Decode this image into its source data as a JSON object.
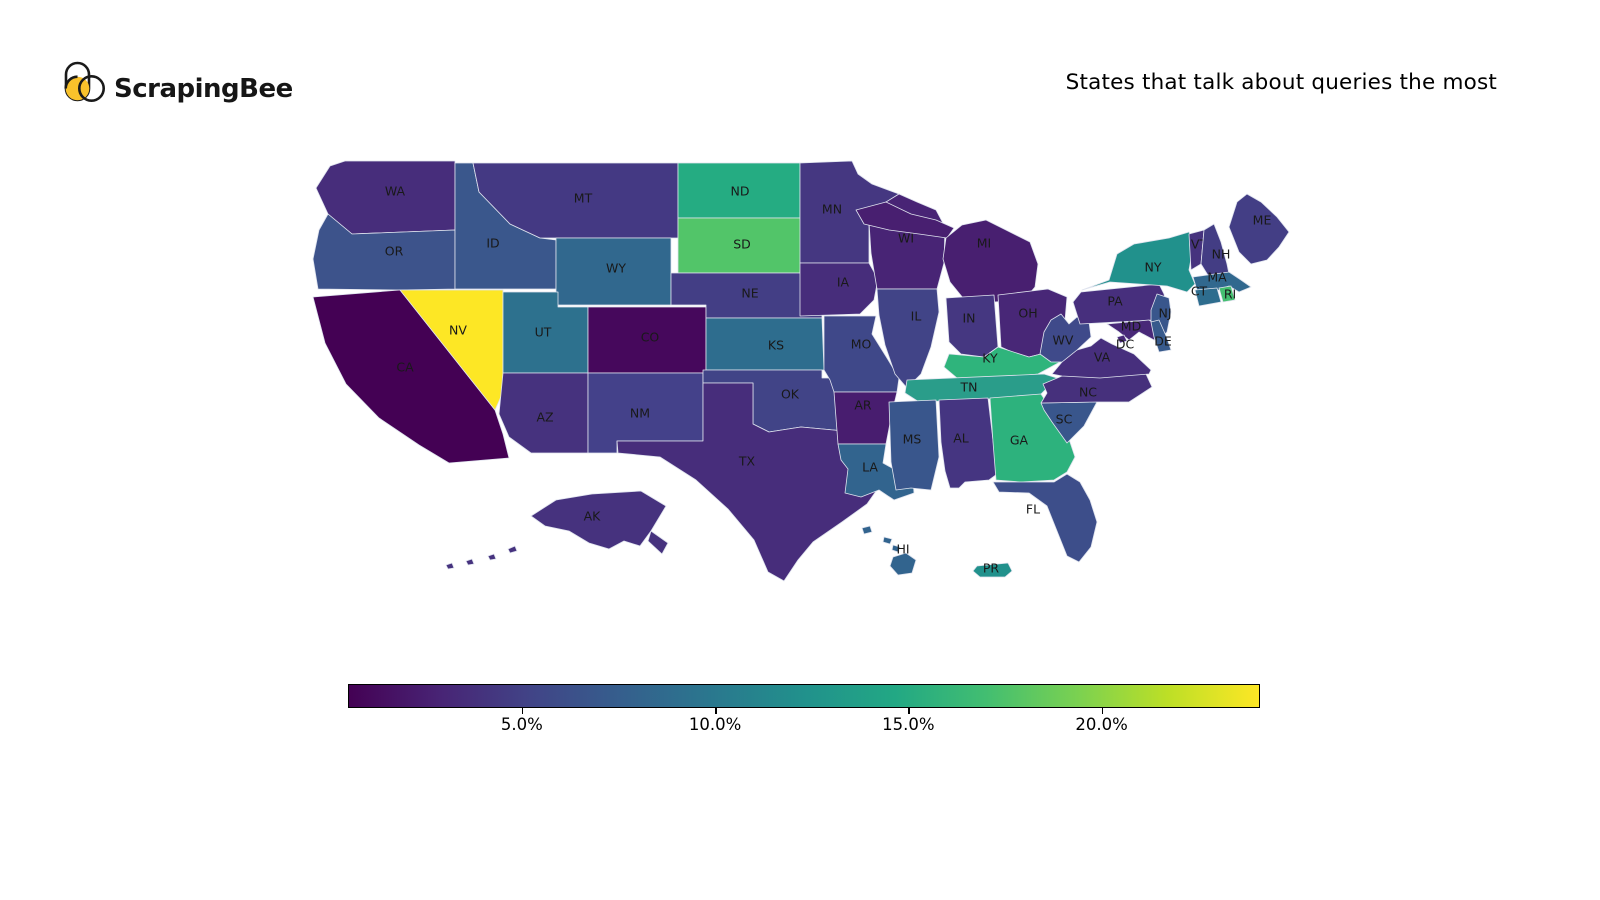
{
  "header": {
    "logo_text": "ScrapingBee",
    "title": "States that talk about queries the most"
  },
  "colors": {
    "background": "#ffffff",
    "state_border": "#dfe3ee",
    "state_label": "#191919",
    "title_text": "#000000",
    "logo_yellow": "#F9C22B",
    "logo_dark": "#1a1a1a",
    "colorbar_border": "#000000"
  },
  "chart_data": {
    "type": "choropleth",
    "region": "usa-states",
    "title": "States that talk about queries the most",
    "colormap": "viridis",
    "unit": "%",
    "colorbar": {
      "orientation": "horizontal",
      "min": 0.5,
      "max": 24.1,
      "tick_values": [
        5,
        10,
        15,
        20
      ],
      "tick_labels": [
        "5.0%",
        "10.0%",
        "15.0%",
        "20.0%"
      ]
    },
    "states": [
      {
        "code": "WA",
        "value_pct_approx": 3.2,
        "color": "#472D7B"
      },
      {
        "code": "OR",
        "value_pct_approx": 6.8,
        "color": "#3D538B"
      },
      {
        "code": "CA",
        "value_pct_approx": 0.6,
        "color": "#440154"
      },
      {
        "code": "NV",
        "value_pct_approx": 24.1,
        "color": "#FDE725"
      },
      {
        "code": "ID",
        "value_pct_approx": 7.2,
        "color": "#3A578C"
      },
      {
        "code": "MT",
        "value_pct_approx": 4.2,
        "color": "#443983"
      },
      {
        "code": "WY",
        "value_pct_approx": 9.1,
        "color": "#31688E"
      },
      {
        "code": "UT",
        "value_pct_approx": 10.1,
        "color": "#2D718E"
      },
      {
        "code": "CO",
        "value_pct_approx": 1.1,
        "color": "#46085C"
      },
      {
        "code": "AZ",
        "value_pct_approx": 3.6,
        "color": "#46327E"
      },
      {
        "code": "NM",
        "value_pct_approx": 5.1,
        "color": "#44418A"
      },
      {
        "code": "ND",
        "value_pct_approx": 14.7,
        "color": "#25AC82"
      },
      {
        "code": "SD",
        "value_pct_approx": 18.5,
        "color": "#52C569"
      },
      {
        "code": "NE",
        "value_pct_approx": 5.0,
        "color": "#433E85"
      },
      {
        "code": "KS",
        "value_pct_approx": 9.7,
        "color": "#2E6D8E"
      },
      {
        "code": "OK",
        "value_pct_approx": 5.3,
        "color": "#414487"
      },
      {
        "code": "TX",
        "value_pct_approx": 3.2,
        "color": "#472D7B"
      },
      {
        "code": "MN",
        "value_pct_approx": 3.9,
        "color": "#453781"
      },
      {
        "code": "IA",
        "value_pct_approx": 3.2,
        "color": "#472D7B"
      },
      {
        "code": "MO",
        "value_pct_approx": 5.6,
        "color": "#3F4889"
      },
      {
        "code": "AR",
        "value_pct_approx": 2.1,
        "color": "#481D6F"
      },
      {
        "code": "LA",
        "value_pct_approx": 8.5,
        "color": "#32648E"
      },
      {
        "code": "WI",
        "value_pct_approx": 2.5,
        "color": "#482475"
      },
      {
        "code": "IL",
        "value_pct_approx": 5.3,
        "color": "#414487"
      },
      {
        "code": "MI",
        "value_pct_approx": 2.0,
        "color": "#481F70"
      },
      {
        "code": "IN",
        "value_pct_approx": 3.9,
        "color": "#453781"
      },
      {
        "code": "OH",
        "value_pct_approx": 2.8,
        "color": "#482777"
      },
      {
        "code": "KY",
        "value_pct_approx": 15.6,
        "color": "#2FB47C"
      },
      {
        "code": "TN",
        "value_pct_approx": 14.4,
        "color": "#2A9D8A"
      },
      {
        "code": "MS",
        "value_pct_approx": 7.4,
        "color": "#39568C"
      },
      {
        "code": "AL",
        "value_pct_approx": 3.8,
        "color": "#453581"
      },
      {
        "code": "GA",
        "value_pct_approx": 15.1,
        "color": "#2DB27D"
      },
      {
        "code": "FL",
        "value_pct_approx": 6.2,
        "color": "#3D4E8A"
      },
      {
        "code": "SC",
        "value_pct_approx": 7.4,
        "color": "#39568C"
      },
      {
        "code": "NC",
        "value_pct_approx": 3.1,
        "color": "#46307C"
      },
      {
        "code": "VA",
        "value_pct_approx": 3.4,
        "color": "#472F7D"
      },
      {
        "code": "WV",
        "value_pct_approx": 5.9,
        "color": "#3F4A8A"
      },
      {
        "code": "PA",
        "value_pct_approx": 3.4,
        "color": "#472F7D"
      },
      {
        "code": "NY",
        "value_pct_approx": 13.2,
        "color": "#21918C"
      },
      {
        "code": "NJ",
        "value_pct_approx": 7.4,
        "color": "#39568C"
      },
      {
        "code": "VT",
        "value_pct_approx": 3.5,
        "color": "#46337E"
      },
      {
        "code": "NH",
        "value_pct_approx": 4.9,
        "color": "#433D84"
      },
      {
        "code": "ME",
        "value_pct_approx": 4.6,
        "color": "#433E85"
      },
      {
        "code": "MA",
        "value_pct_approx": 8.9,
        "color": "#31688E"
      },
      {
        "code": "CT",
        "value_pct_approx": 9.5,
        "color": "#2E6D8E"
      },
      {
        "code": "RI",
        "value_pct_approx": 17.5,
        "color": "#44BF70"
      },
      {
        "code": "MD",
        "value_pct_approx": 2.9,
        "color": "#482878"
      },
      {
        "code": "DE",
        "value_pct_approx": 7.9,
        "color": "#375A8C"
      },
      {
        "code": "DC",
        "value_pct_approx": 2.9,
        "color": "#482878"
      },
      {
        "code": "AK",
        "value_pct_approx": 3.6,
        "color": "#46327E"
      },
      {
        "code": "HI",
        "value_pct_approx": 8.5,
        "color": "#32648E"
      },
      {
        "code": "PR",
        "value_pct_approx": 13.5,
        "color": "#21918C"
      }
    ]
  }
}
